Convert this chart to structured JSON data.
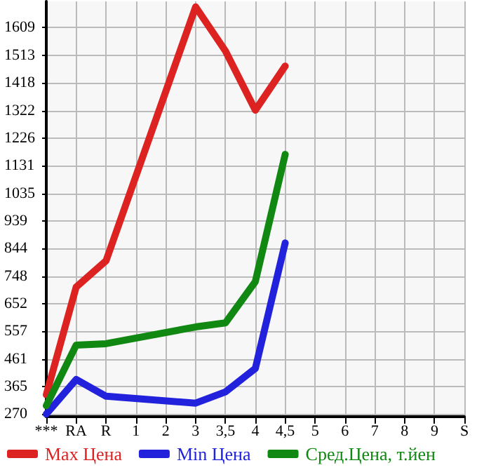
{
  "chart_data": {
    "type": "line",
    "categories": [
      "***",
      "RA",
      "R",
      "1",
      "2",
      "3",
      "3,5",
      "4",
      "4,5",
      "5",
      "6",
      "7",
      "8",
      "9",
      "S"
    ],
    "series": [
      {
        "name": "Max Цена",
        "color": "#dd2222",
        "values": [
          337,
          710,
          801,
          null,
          null,
          1681,
          1528,
          1323,
          1476,
          null,
          null,
          null,
          null,
          null,
          null
        ]
      },
      {
        "name": "Min Цена",
        "color": "#2222dd",
        "values": [
          270,
          390,
          332,
          null,
          null,
          308,
          347,
          428,
          863,
          null,
          null,
          null,
          null,
          null,
          null
        ]
      },
      {
        "name": "Сред.Цена, т.йен",
        "color": "#118811",
        "values": [
          299,
          509,
          514,
          null,
          null,
          572,
          586,
          729,
          1170,
          null,
          null,
          null,
          null,
          null,
          null
        ]
      }
    ],
    "ylim": [
      261,
      1700
    ],
    "yticks": [
      270,
      365,
      461,
      557,
      652,
      748,
      844,
      939,
      1035,
      1131,
      1226,
      1322,
      1418,
      1513,
      1609
    ],
    "grid": true,
    "legend": "bottom",
    "marker": "none",
    "line_style": "solid"
  }
}
